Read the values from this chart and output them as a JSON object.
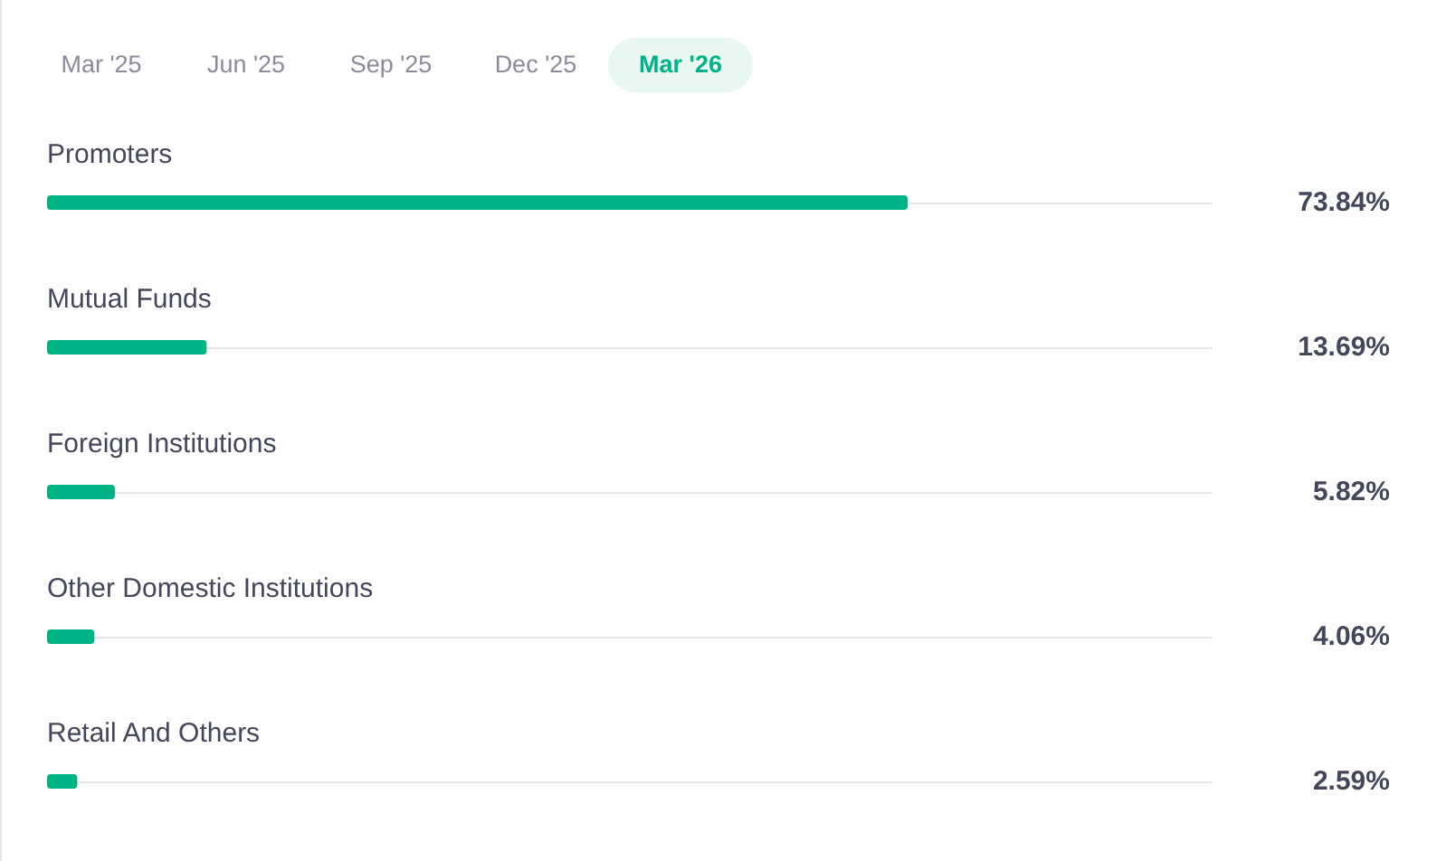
{
  "chart_data": {
    "type": "bar",
    "orientation": "horizontal",
    "annotations": [
      "Mar '25",
      "Jun '25",
      "Sep '25",
      "Dec '25"
    ],
    "subtitle": "Mar '26",
    "categories": [
      "Promoters",
      "Mutual Funds",
      "Foreign Institutions",
      "Other Domestic Institutions",
      "Retail And Others"
    ],
    "values": [
      73.84,
      13.69,
      5.82,
      4.06,
      2.59
    ],
    "value_labels": [
      "73.84%",
      "13.69%",
      "5.82%",
      "4.06%",
      "2.59%"
    ],
    "color": "#00b386",
    "xlim": [
      0,
      100
    ],
    "grid": "y",
    "tick_labels": "y"
  }
}
